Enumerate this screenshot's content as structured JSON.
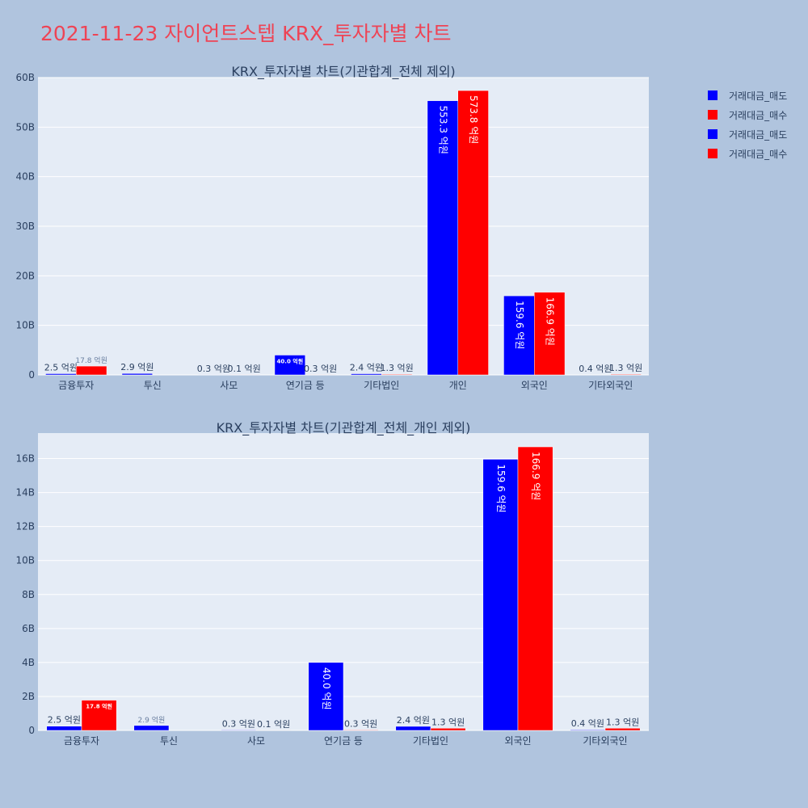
{
  "page_title": "2021-11-23 자이언트스텝 KRX_투자자별 차트",
  "colors": {
    "sell": "#0000ff",
    "buy": "#ff0000",
    "background": "#b0c4de",
    "plot_bg": "#e5ecf6",
    "title": "#ee4455"
  },
  "legend": [
    {
      "label": "거래대금_매도",
      "color": "#0000ff"
    },
    {
      "label": "거래대금_매수",
      "color": "#ff0000"
    },
    {
      "label": "거래대금_매도",
      "color": "#0000ff"
    },
    {
      "label": "거래대금_매수",
      "color": "#ff0000"
    }
  ],
  "chart_data": [
    {
      "type": "bar",
      "title": "KRX_투자자별 차트(기관합계_전체 제외)",
      "categories": [
        "금융투자",
        "투신",
        "사모",
        "연기금 등",
        "기타법인",
        "개인",
        "외국인",
        "기타외국인"
      ],
      "series": [
        {
          "name": "거래대금_매도",
          "color": "#0000ff",
          "values": [
            0.25,
            0.29,
            0.03,
            4.0,
            0.24,
            55.33,
            15.96,
            0.04
          ],
          "labels": [
            "2.5 억원",
            "2.9 억원",
            "0.3 억원",
            "40.0 억원",
            "2.4 억원",
            "553.3 억원",
            "159.6 억원",
            "0.4 억원"
          ]
        },
        {
          "name": "거래대금_매수",
          "color": "#ff0000",
          "values": [
            1.78,
            0,
            0.01,
            0.03,
            0.13,
            57.38,
            16.69,
            0.13
          ],
          "labels": [
            "17.8 억원",
            "",
            "0.1 억원",
            "0.3 억원",
            "1.3 억원",
            "573.8 억원",
            "166.9 억원",
            "1.3 억원"
          ]
        }
      ],
      "ylim": [
        0,
        60
      ],
      "yticks": [
        0,
        10,
        20,
        30,
        40,
        50,
        60
      ],
      "ytick_labels": [
        "0",
        "10B",
        "20B",
        "30B",
        "40B",
        "50B",
        "60B"
      ],
      "grid": true
    },
    {
      "type": "bar",
      "title": "KRX_투자자별 차트(기관합계_전체_개인 제외)",
      "categories": [
        "금융투자",
        "투신",
        "사모",
        "연기금 등",
        "기타법인",
        "외국인",
        "기타외국인"
      ],
      "series": [
        {
          "name": "거래대금_매도",
          "color": "#0000ff",
          "values": [
            0.25,
            0.29,
            0.03,
            4.0,
            0.24,
            15.96,
            0.04
          ],
          "labels": [
            "2.5 억원",
            "2.9 억원",
            "0.3 억원",
            "40.0 억원",
            "2.4 억원",
            "159.6 억원",
            "0.4 억원"
          ]
        },
        {
          "name": "거래대금_매수",
          "color": "#ff0000",
          "values": [
            1.78,
            0,
            0.01,
            0.03,
            0.13,
            16.69,
            0.13
          ],
          "labels": [
            "17.8 억원",
            "",
            "0.1 억원",
            "0.3 억원",
            "1.3 억원",
            "166.9 억원",
            "1.3 억원"
          ]
        }
      ],
      "ylim": [
        0,
        17.5
      ],
      "yticks": [
        0,
        2,
        4,
        6,
        8,
        10,
        12,
        14,
        16
      ],
      "ytick_labels": [
        "0",
        "2B",
        "4B",
        "6B",
        "8B",
        "10B",
        "12B",
        "14B",
        "16B"
      ],
      "grid": true
    }
  ]
}
